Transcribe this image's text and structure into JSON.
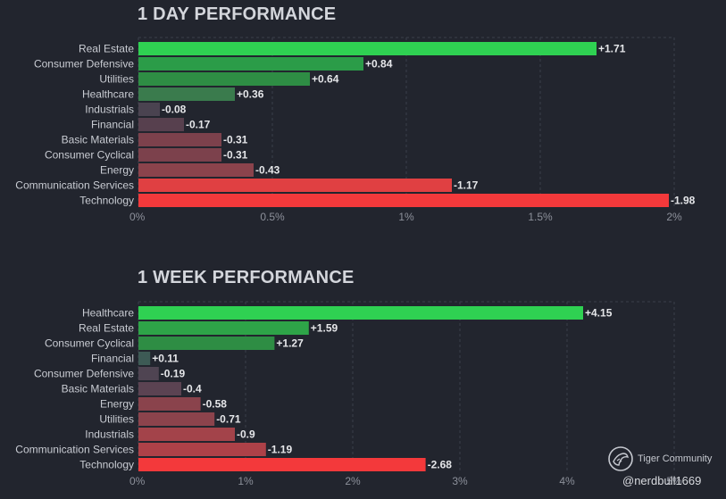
{
  "chart_data": [
    {
      "type": "bar",
      "orientation": "horizontal",
      "title": "1 DAY PERFORMANCE",
      "categories": [
        "Real Estate",
        "Consumer Defensive",
        "Utilities",
        "Healthcare",
        "Industrials",
        "Financial",
        "Basic Materials",
        "Consumer Cyclical",
        "Energy",
        "Communication Services",
        "Technology"
      ],
      "values": [
        1.71,
        0.84,
        0.64,
        0.36,
        -0.08,
        -0.17,
        -0.31,
        -0.31,
        -0.43,
        -1.17,
        -1.98
      ],
      "value_labels": [
        "+1.71",
        "+0.84",
        "+0.64",
        "+0.36",
        "-0.08",
        "-0.17",
        "-0.31",
        "-0.31",
        "-0.43",
        "-1.17",
        "-1.98"
      ],
      "note": "bar length = absolute value",
      "xlim": [
        0,
        2
      ],
      "xticks": [
        0,
        0.5,
        1,
        1.5,
        2
      ],
      "xtick_labels": [
        "0%",
        "0.5%",
        "1%",
        "1.5%",
        "2%"
      ],
      "grid": true,
      "colors": [
        "#2fd152",
        "#2b9c48",
        "#2e8d44",
        "#3a7b4d",
        "#4a4350",
        "#57404e",
        "#7c414c",
        "#7c414c",
        "#8b434c",
        "#e04042",
        "#f3393b"
      ]
    },
    {
      "type": "bar",
      "orientation": "horizontal",
      "title": "1 WEEK PERFORMANCE",
      "categories": [
        "Healthcare",
        "Real Estate",
        "Consumer Cyclical",
        "Financial",
        "Consumer Defensive",
        "Basic Materials",
        "Energy",
        "Utilities",
        "Industrials",
        "Communication Services",
        "Technology"
      ],
      "values": [
        4.15,
        1.59,
        1.27,
        0.11,
        -0.19,
        -0.4,
        -0.58,
        -0.71,
        -0.9,
        -1.19,
        -2.68
      ],
      "value_labels": [
        "+4.15",
        "+1.59",
        "+1.27",
        "+0.11",
        "-0.19",
        "-0.4",
        "-0.58",
        "-0.71",
        "-0.9",
        "-1.19",
        "-2.68"
      ],
      "note": "bar length = absolute value",
      "xlim": [
        0,
        5
      ],
      "xticks": [
        0,
        1,
        2,
        3,
        4,
        5
      ],
      "xtick_labels": [
        "0%",
        "1%",
        "2%",
        "3%",
        "4%",
        "5%"
      ],
      "grid": true,
      "colors": [
        "#2fd152",
        "#2ea448",
        "#2e8d44",
        "#3d5a55",
        "#4f4452",
        "#5b4352",
        "#8a434c",
        "#8c434c",
        "#a3434a",
        "#ad4148",
        "#f3393b"
      ]
    }
  ],
  "watermark": {
    "brand": "Tiger Community",
    "user": "@nerdbull1669"
  }
}
